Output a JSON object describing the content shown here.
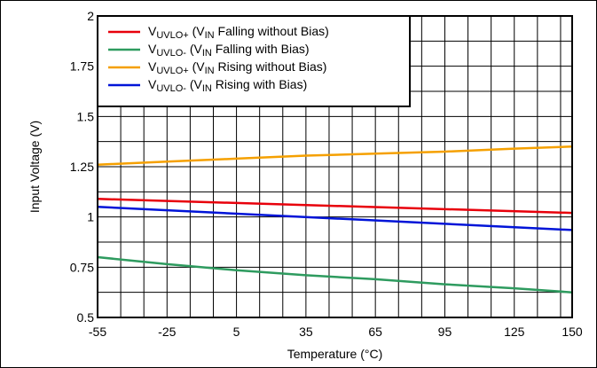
{
  "chart_data": {
    "type": "line",
    "xlabel": "Temperature (°C)",
    "ylabel": "Input Voltage (V)",
    "xlim": [
      -55,
      150
    ],
    "ylim": [
      0.5,
      2
    ],
    "xticks": [
      -55,
      -25,
      5,
      35,
      65,
      95,
      125,
      150
    ],
    "yticks": [
      0.5,
      0.75,
      1,
      1.25,
      1.5,
      1.75,
      2
    ],
    "ytick_labels": [
      "0.5",
      "0.75",
      "1",
      "1.25",
      "1.5",
      "1.75",
      "2"
    ],
    "grid": true,
    "legend_position": "top-right",
    "series": [
      {
        "name_main": "V",
        "name_sub": "UVLO+",
        "name_mid": " (V",
        "name_sub2": "IN",
        "name_tail": " Falling without Bias)",
        "color": "#e8000b",
        "x": [
          -55,
          150
        ],
        "y": [
          1.09,
          1.02
        ]
      },
      {
        "name_main": "V",
        "name_sub": "UVLO-",
        "name_mid": " (V",
        "name_sub2": "IN",
        "name_tail": " Falling with Bias)",
        "color": "#2e9b5f",
        "x": [
          -55,
          -25,
          5,
          35,
          65,
          95,
          125,
          150
        ],
        "y": [
          0.8,
          0.765,
          0.735,
          0.71,
          0.69,
          0.665,
          0.645,
          0.625
        ]
      },
      {
        "name_main": "V",
        "name_sub": "UVLO+",
        "name_mid": " (V",
        "name_sub2": "IN",
        "name_tail": " Rising without Bias)",
        "color": "#f5a000",
        "x": [
          -55,
          -25,
          5,
          35,
          65,
          95,
          125,
          150
        ],
        "y": [
          1.26,
          1.275,
          1.29,
          1.305,
          1.315,
          1.325,
          1.34,
          1.35
        ]
      },
      {
        "name_main": "V",
        "name_sub": "UVLO-",
        "name_mid": " (V",
        "name_sub2": "IN",
        "name_tail": " Rising with Bias)",
        "color": "#0014d8",
        "x": [
          -55,
          150
        ],
        "y": [
          1.05,
          0.935
        ]
      }
    ]
  }
}
